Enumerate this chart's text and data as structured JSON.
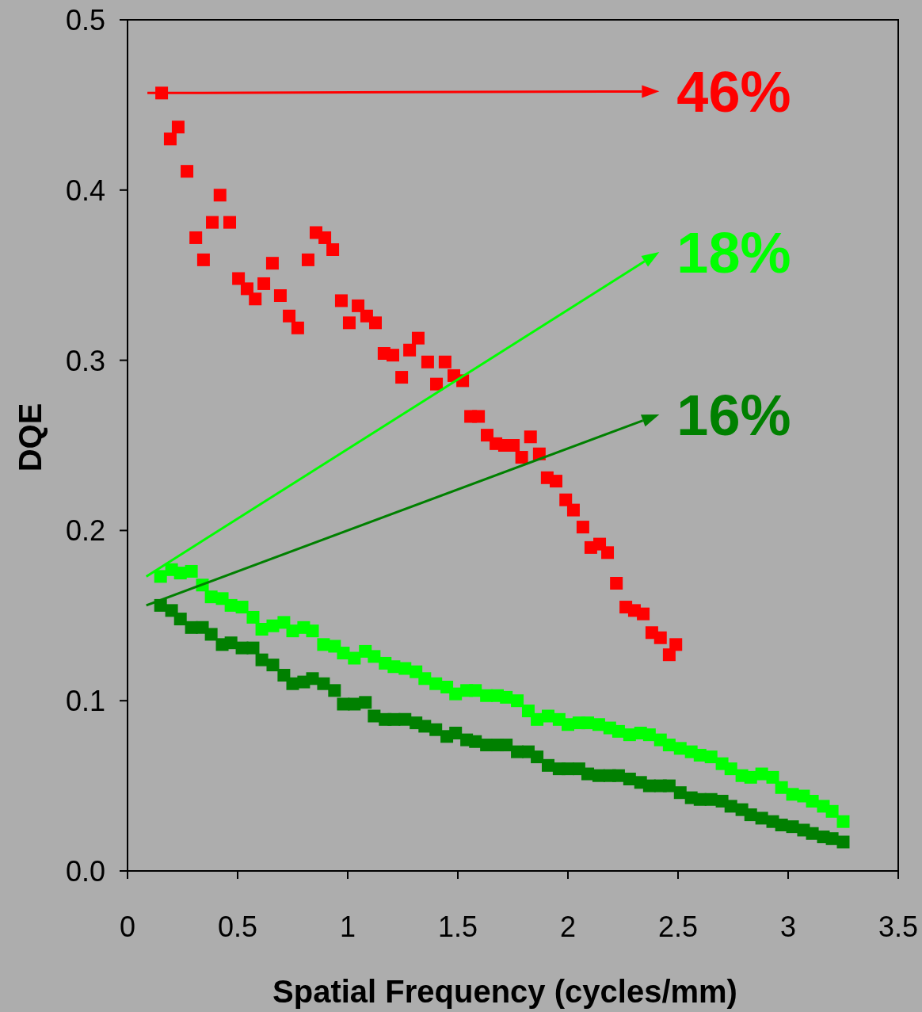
{
  "chart_data": {
    "type": "scatter",
    "xlabel": "Spatial Frequency (cycles/mm)",
    "ylabel": "DQE",
    "marker": "square",
    "grid": false,
    "xlim": [
      0,
      3.5
    ],
    "xticks": [
      0,
      0.5,
      1,
      1.5,
      2,
      2.5,
      3,
      3.5
    ],
    "ylim": [
      0,
      0.5
    ],
    "yticks": [
      {
        "value": 0,
        "label": "0.0"
      },
      0.1,
      0.2,
      0.3,
      0.4,
      0.5
    ],
    "annotations": [
      "46%",
      "18%",
      "16%"
    ],
    "series": [
      {
        "color": "#ff0000",
        "x": [
          0.155,
          0.194,
          0.23,
          0.27,
          0.31,
          0.345,
          0.385,
          0.42,
          0.464,
          0.504,
          0.543,
          0.58,
          0.619,
          0.658,
          0.694,
          0.734,
          0.773,
          0.82,
          0.856,
          0.896,
          0.932,
          0.971,
          1.007,
          1.047,
          1.086,
          1.126,
          1.165,
          1.205,
          1.245,
          1.281,
          1.32,
          1.363,
          1.403,
          1.442,
          1.482,
          1.522,
          1.558,
          1.594,
          1.633,
          1.673,
          1.712,
          1.752,
          1.79,
          1.83,
          1.87,
          1.906,
          1.946,
          1.99,
          2.025,
          2.068,
          2.104,
          2.144,
          2.18,
          2.22,
          2.263,
          2.302,
          2.342,
          2.381,
          2.42,
          2.46,
          2.49
        ],
        "values": [
          0.457,
          0.43,
          0.437,
          0.411,
          0.372,
          0.359,
          0.381,
          0.397,
          0.381,
          0.348,
          0.342,
          0.336,
          0.345,
          0.357,
          0.338,
          0.326,
          0.319,
          0.359,
          0.375,
          0.372,
          0.365,
          0.335,
          0.322,
          0.332,
          0.326,
          0.322,
          0.304,
          0.303,
          0.29,
          0.306,
          0.313,
          0.299,
          0.286,
          0.299,
          0.291,
          0.288,
          0.267,
          0.267,
          0.256,
          0.251,
          0.25,
          0.25,
          0.243,
          0.255,
          0.245,
          0.231,
          0.229,
          0.218,
          0.212,
          0.202,
          0.19,
          0.192,
          0.187,
          0.169,
          0.155,
          0.153,
          0.151,
          0.14,
          0.137,
          0.127,
          0.133
        ]
      },
      {
        "color": "#00ff00",
        "x": [
          0.15,
          0.2,
          0.24,
          0.29,
          0.34,
          0.38,
          0.43,
          0.47,
          0.52,
          0.57,
          0.61,
          0.66,
          0.71,
          0.75,
          0.8,
          0.84,
          0.89,
          0.94,
          0.98,
          1.03,
          1.08,
          1.12,
          1.17,
          1.21,
          1.26,
          1.31,
          1.35,
          1.4,
          1.45,
          1.49,
          1.54,
          1.58,
          1.63,
          1.68,
          1.72,
          1.77,
          1.82,
          1.86,
          1.91,
          1.96,
          2,
          2.05,
          2.09,
          2.14,
          2.19,
          2.23,
          2.28,
          2.33,
          2.37,
          2.42,
          2.46,
          2.51,
          2.56,
          2.6,
          2.65,
          2.7,
          2.74,
          2.79,
          2.83,
          2.88,
          2.93,
          2.97,
          3.02,
          3.07,
          3.11,
          3.16,
          3.2,
          3.25
        ],
        "values": [
          0.173,
          0.177,
          0.175,
          0.176,
          0.168,
          0.161,
          0.16,
          0.156,
          0.155,
          0.149,
          0.142,
          0.144,
          0.146,
          0.141,
          0.143,
          0.141,
          0.133,
          0.132,
          0.128,
          0.125,
          0.129,
          0.126,
          0.122,
          0.12,
          0.119,
          0.117,
          0.113,
          0.11,
          0.108,
          0.104,
          0.106,
          0.106,
          0.103,
          0.103,
          0.102,
          0.1,
          0.094,
          0.089,
          0.091,
          0.089,
          0.086,
          0.087,
          0.087,
          0.086,
          0.084,
          0.082,
          0.08,
          0.081,
          0.08,
          0.077,
          0.074,
          0.072,
          0.07,
          0.068,
          0.067,
          0.063,
          0.06,
          0.056,
          0.055,
          0.057,
          0.055,
          0.049,
          0.045,
          0.044,
          0.041,
          0.038,
          0.035,
          0.029
        ]
      },
      {
        "color": "#008000",
        "x": [
          0.15,
          0.2,
          0.24,
          0.29,
          0.34,
          0.38,
          0.43,
          0.47,
          0.52,
          0.57,
          0.61,
          0.66,
          0.71,
          0.75,
          0.8,
          0.84,
          0.89,
          0.94,
          0.98,
          1.03,
          1.08,
          1.12,
          1.17,
          1.21,
          1.26,
          1.31,
          1.35,
          1.4,
          1.45,
          1.49,
          1.54,
          1.58,
          1.63,
          1.68,
          1.72,
          1.77,
          1.82,
          1.86,
          1.91,
          1.96,
          2,
          2.05,
          2.09,
          2.14,
          2.19,
          2.23,
          2.28,
          2.33,
          2.37,
          2.42,
          2.46,
          2.51,
          2.56,
          2.6,
          2.65,
          2.7,
          2.74,
          2.79,
          2.83,
          2.88,
          2.93,
          2.97,
          3.02,
          3.07,
          3.11,
          3.16,
          3.2,
          3.25
        ],
        "values": [
          0.156,
          0.153,
          0.148,
          0.143,
          0.143,
          0.139,
          0.133,
          0.134,
          0.131,
          0.131,
          0.124,
          0.121,
          0.115,
          0.11,
          0.111,
          0.113,
          0.11,
          0.106,
          0.098,
          0.098,
          0.099,
          0.091,
          0.089,
          0.089,
          0.089,
          0.087,
          0.085,
          0.083,
          0.079,
          0.081,
          0.077,
          0.076,
          0.074,
          0.074,
          0.074,
          0.07,
          0.07,
          0.067,
          0.062,
          0.06,
          0.06,
          0.06,
          0.057,
          0.056,
          0.056,
          0.056,
          0.054,
          0.052,
          0.05,
          0.05,
          0.05,
          0.046,
          0.043,
          0.042,
          0.042,
          0.041,
          0.038,
          0.036,
          0.033,
          0.031,
          0.029,
          0.027,
          0.026,
          0.024,
          0.022,
          0.02,
          0.019,
          0.017
        ]
      }
    ]
  }
}
